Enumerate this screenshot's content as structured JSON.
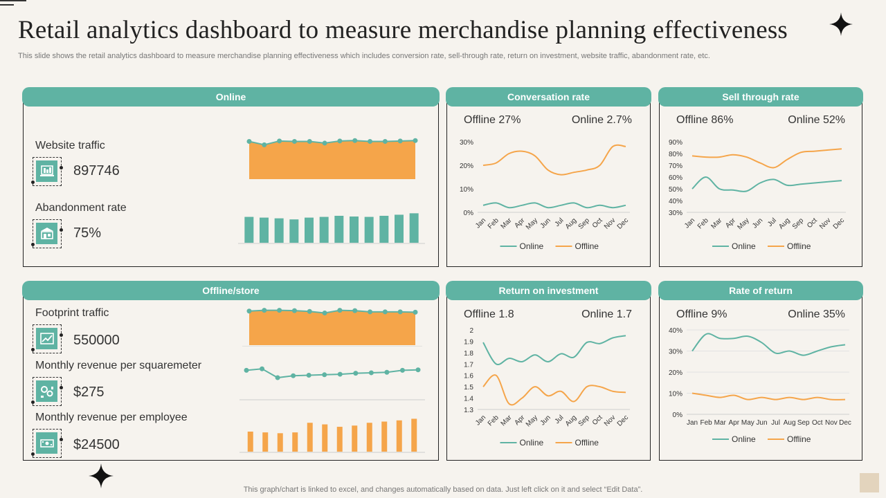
{
  "title": "Retail analytics dashboard to measure merchandise planning effectiveness",
  "subtitle": "This slide shows the retail analytics dashboard to measure merchandise planning effectiveness which includes conversion rate, sell-through rate, return on investment, website traffic, abandonment rate, etc.",
  "footer": "This graph/chart is linked to excel, and changes automatically based on data. Just left click on it and select “Edit Data”.",
  "colors": {
    "teal": "#5fb3a3",
    "orange": "#f5a54a",
    "orange_line": "#f5a54a"
  },
  "online": {
    "header": "Online",
    "website_traffic": {
      "label": "Website traffic",
      "value": "897746",
      "icon": "laptop-icon"
    },
    "abandonment_rate": {
      "label": "Abandonment rate",
      "value": "75%",
      "icon": "store-icon"
    }
  },
  "offline": {
    "header": "Offline/store",
    "footprint_traffic": {
      "label": "Footprint traffic",
      "value": "550000",
      "icon": "chart-icon"
    },
    "revenue_sqm": {
      "label": "Monthly  revenue  per squaremeter",
      "value": "$275",
      "icon": "gears-icon"
    },
    "revenue_employee": {
      "label": "Monthly  revenue  per employee",
      "value": "$24500",
      "icon": "money-icon"
    }
  },
  "panels": {
    "conversion": {
      "header": "Conversation rate",
      "offline_stat": "Offline 27%",
      "online_stat": "Online  2.7%"
    },
    "sellthrough": {
      "header": "Sell through rate",
      "offline_stat": "Offline  86%",
      "online_stat": "Online  52%"
    },
    "roi": {
      "header": "Return on investment",
      "offline_stat": "Offline  1.8",
      "online_stat": "Online  1.7"
    },
    "ror": {
      "header": "Rate of return",
      "offline_stat": "Offline   9%",
      "online_stat": "Online   35%"
    }
  },
  "chart_data": [
    {
      "id": "website-traffic",
      "type": "area",
      "values": [
        88,
        80,
        89,
        88,
        88,
        84,
        89,
        90,
        88,
        88,
        89,
        90
      ],
      "ylim": [
        0,
        100
      ]
    },
    {
      "id": "abandonment-rate",
      "type": "bar",
      "values": [
        72,
        70,
        68,
        65,
        70,
        72,
        75,
        73,
        72,
        75,
        78,
        82
      ],
      "ylim": [
        0,
        100
      ]
    },
    {
      "id": "footprint-traffic",
      "type": "area",
      "values": [
        88,
        90,
        90,
        89,
        87,
        83,
        90,
        89,
        86,
        86,
        86,
        85
      ],
      "ylim": [
        0,
        100
      ]
    },
    {
      "id": "revenue-sqm",
      "type": "line",
      "values": [
        60,
        63,
        45,
        49,
        50,
        51,
        52,
        54,
        55,
        56,
        60,
        61
      ],
      "ylim": [
        0,
        100
      ]
    },
    {
      "id": "revenue-employee",
      "type": "bar",
      "values": [
        50,
        48,
        46,
        48,
        72,
        68,
        62,
        65,
        72,
        75,
        78,
        82
      ],
      "ylim": [
        0,
        100
      ]
    },
    {
      "id": "conversion-rate",
      "type": "line",
      "title": "Conversation rate",
      "categories": [
        "Jan",
        "Feb",
        "Mar",
        "Apr",
        "May",
        "Jun",
        "Jul",
        "Aug",
        "Sep",
        "Oct",
        "Nov",
        "Dec"
      ],
      "yticks": [
        "0%",
        "10%",
        "20%",
        "30%"
      ],
      "ylim": [
        0,
        30
      ],
      "series": [
        {
          "name": "Online",
          "values": [
            3,
            4,
            2,
            3,
            4,
            2,
            3,
            4,
            2,
            3,
            2,
            3
          ]
        },
        {
          "name": "Offline",
          "values": [
            20,
            21,
            25,
            26,
            24,
            18,
            16,
            17,
            18,
            20,
            28,
            28
          ]
        }
      ]
    },
    {
      "id": "sell-through-rate",
      "type": "line",
      "title": "Sell through rate",
      "categories": [
        "Jan",
        "Feb",
        "Mar",
        "Apr",
        "May",
        "Jun",
        "Jul",
        "Aug",
        "Sep",
        "Oct",
        "Nov",
        "Dec"
      ],
      "yticks": [
        "30%",
        "40%",
        "50%",
        "60%",
        "70%",
        "80%",
        "90%"
      ],
      "ylim": [
        30,
        90
      ],
      "series": [
        {
          "name": "Online",
          "values": [
            50,
            60,
            50,
            49,
            48,
            55,
            58,
            53,
            54,
            55,
            56,
            57
          ]
        },
        {
          "name": "Offline",
          "values": [
            78,
            77,
            77,
            79,
            77,
            72,
            68,
            75,
            81,
            82,
            83,
            84
          ]
        }
      ]
    },
    {
      "id": "return-on-investment",
      "type": "line",
      "title": "Return on investment",
      "categories": [
        "Jan",
        "Feb",
        "Mar",
        "Apr",
        "May",
        "Jun",
        "Jul",
        "Aug",
        "Sep",
        "Oct",
        "Nov",
        "Dec"
      ],
      "yticks": [
        "1.3",
        "1.4",
        "1.5",
        "1.6",
        "1.7",
        "1.8",
        "1.9",
        "2"
      ],
      "ylim": [
        1.3,
        2.0
      ],
      "series": [
        {
          "name": "Online",
          "values": [
            1.89,
            1.7,
            1.75,
            1.72,
            1.78,
            1.72,
            1.79,
            1.76,
            1.89,
            1.88,
            1.93,
            1.95
          ]
        },
        {
          "name": "Offline",
          "values": [
            1.5,
            1.6,
            1.35,
            1.4,
            1.5,
            1.42,
            1.46,
            1.37,
            1.5,
            1.5,
            1.46,
            1.45
          ]
        }
      ]
    },
    {
      "id": "rate-of-return",
      "type": "line",
      "title": "Rate of return",
      "categories": [
        "Jan",
        "Feb",
        "Mar",
        "Apr",
        "May",
        "Jun",
        "Jul",
        "Aug",
        "Sep",
        "Oct",
        "Nov",
        "Dec"
      ],
      "yticks": [
        "0%",
        "10%",
        "20%",
        "30%",
        "40%"
      ],
      "ylim": [
        0,
        40
      ],
      "series": [
        {
          "name": "Online",
          "values": [
            30,
            38,
            36,
            36,
            37,
            34,
            29,
            30,
            28,
            30,
            32,
            33
          ]
        },
        {
          "name": "Offline",
          "values": [
            10,
            9,
            8,
            9,
            7,
            8,
            7,
            8,
            7,
            8,
            7,
            7
          ]
        }
      ]
    }
  ]
}
